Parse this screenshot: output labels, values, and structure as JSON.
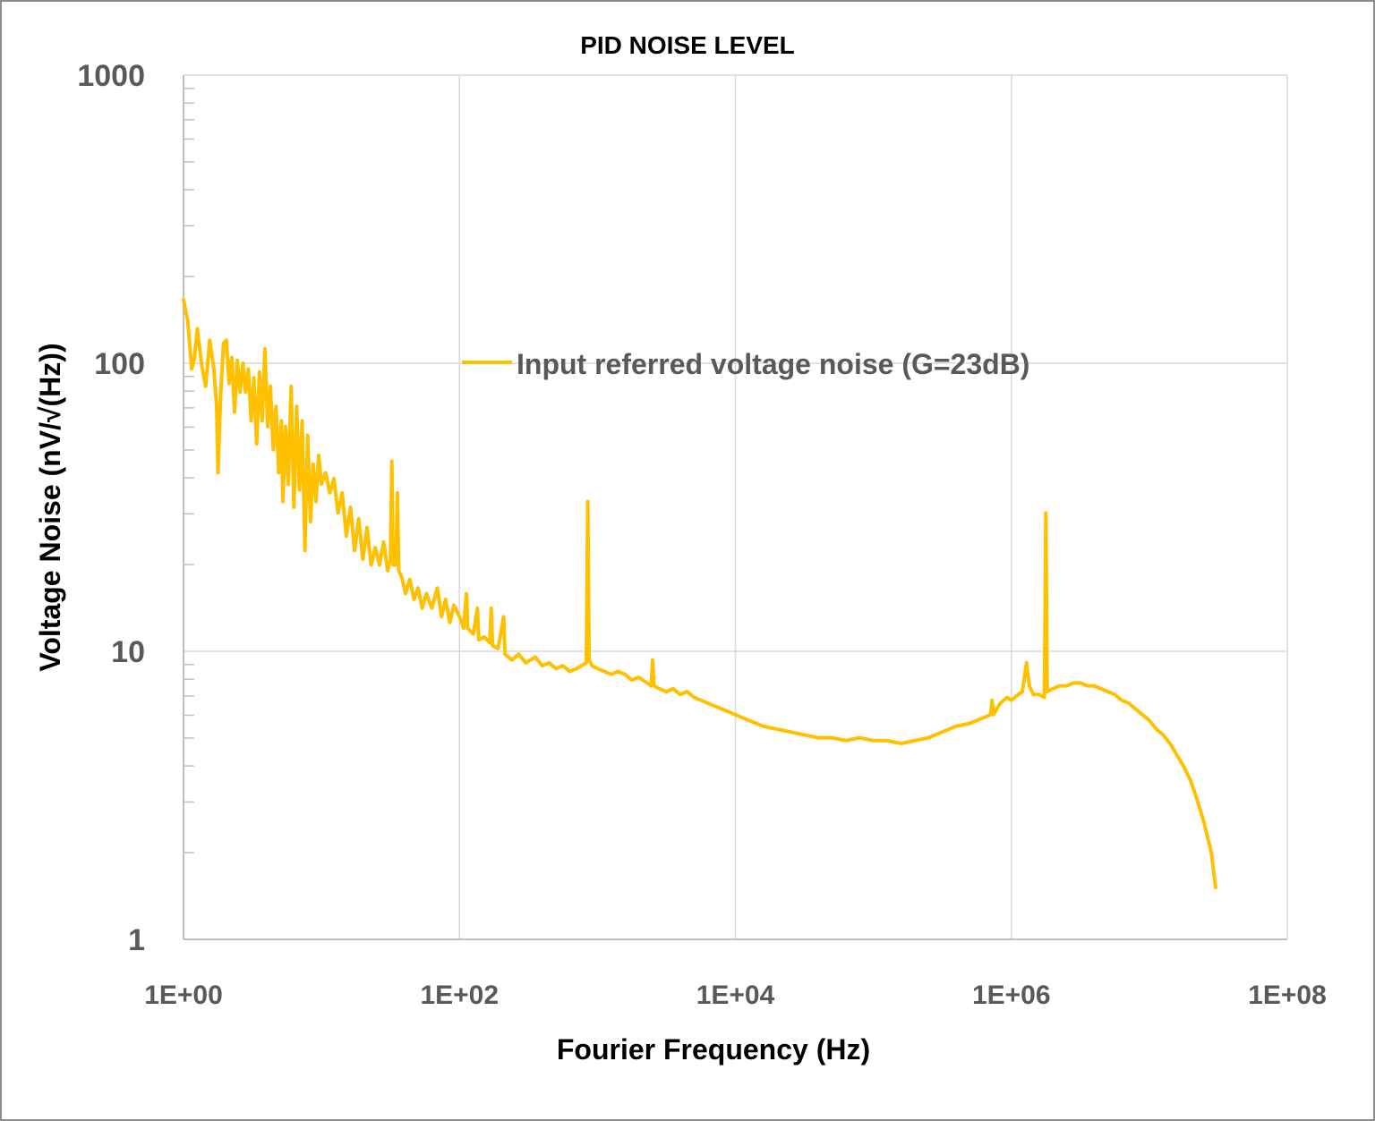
{
  "chart_data": {
    "type": "line",
    "title": "PID NOISE LEVEL",
    "xlabel": "Fourier Frequency (Hz)",
    "ylabel": "Voltage Noise (nV/√(Hz))",
    "xscale": "log",
    "yscale": "log",
    "xlim": [
      1,
      100000000
    ],
    "ylim": [
      1,
      1000
    ],
    "x_tick_labels": [
      "1E+00",
      "1E+02",
      "1E+04",
      "1E+06",
      "1E+08"
    ],
    "y_tick_labels": [
      "1",
      "10",
      "100",
      "1000"
    ],
    "grid": true,
    "legend_position": "inside-top-center",
    "series": [
      {
        "name": "Input referred voltage noise (G=23dB)",
        "color": "#FFC000",
        "points_log10": [
          [
            0.0,
            2.22
          ],
          [
            0.03,
            2.15
          ],
          [
            0.06,
            1.98
          ],
          [
            0.08,
            2.02
          ],
          [
            0.1,
            2.12
          ],
          [
            0.13,
            2.0
          ],
          [
            0.16,
            1.92
          ],
          [
            0.19,
            2.08
          ],
          [
            0.22,
            1.98
          ],
          [
            0.24,
            1.85
          ],
          [
            0.25,
            1.62
          ],
          [
            0.27,
            1.9
          ],
          [
            0.29,
            2.07
          ],
          [
            0.31,
            2.08
          ],
          [
            0.33,
            1.93
          ],
          [
            0.35,
            2.02
          ],
          [
            0.37,
            1.83
          ],
          [
            0.39,
            2.01
          ],
          [
            0.41,
            1.9
          ],
          [
            0.43,
            2.0
          ],
          [
            0.45,
            1.9
          ],
          [
            0.47,
            1.98
          ],
          [
            0.49,
            1.8
          ],
          [
            0.51,
            1.95
          ],
          [
            0.53,
            1.72
          ],
          [
            0.55,
            1.97
          ],
          [
            0.57,
            1.8
          ],
          [
            0.59,
            2.05
          ],
          [
            0.61,
            1.78
          ],
          [
            0.63,
            1.92
          ],
          [
            0.65,
            1.7
          ],
          [
            0.67,
            1.85
          ],
          [
            0.69,
            1.62
          ],
          [
            0.71,
            1.8
          ],
          [
            0.72,
            1.52
          ],
          [
            0.74,
            1.78
          ],
          [
            0.76,
            1.58
          ],
          [
            0.78,
            1.92
          ],
          [
            0.8,
            1.5
          ],
          [
            0.82,
            1.85
          ],
          [
            0.84,
            1.56
          ],
          [
            0.86,
            1.8
          ],
          [
            0.88,
            1.35
          ],
          [
            0.9,
            1.75
          ],
          [
            0.92,
            1.45
          ],
          [
            0.94,
            1.65
          ],
          [
            0.96,
            1.52
          ],
          [
            0.98,
            1.68
          ],
          [
            1.0,
            1.58
          ],
          [
            1.03,
            1.62
          ],
          [
            1.06,
            1.55
          ],
          [
            1.09,
            1.6
          ],
          [
            1.12,
            1.48
          ],
          [
            1.15,
            1.55
          ],
          [
            1.18,
            1.4
          ],
          [
            1.21,
            1.5
          ],
          [
            1.24,
            1.35
          ],
          [
            1.27,
            1.46
          ],
          [
            1.3,
            1.32
          ],
          [
            1.33,
            1.43
          ],
          [
            1.36,
            1.3
          ],
          [
            1.39,
            1.36
          ],
          [
            1.42,
            1.3
          ],
          [
            1.45,
            1.38
          ],
          [
            1.48,
            1.28
          ],
          [
            1.5,
            1.32
          ],
          [
            1.51,
            1.66
          ],
          [
            1.52,
            1.3
          ],
          [
            1.54,
            1.3
          ],
          [
            1.55,
            1.55
          ],
          [
            1.56,
            1.28
          ],
          [
            1.58,
            1.26
          ],
          [
            1.61,
            1.2
          ],
          [
            1.64,
            1.25
          ],
          [
            1.67,
            1.18
          ],
          [
            1.7,
            1.22
          ],
          [
            1.73,
            1.15
          ],
          [
            1.76,
            1.2
          ],
          [
            1.8,
            1.15
          ],
          [
            1.84,
            1.22
          ],
          [
            1.87,
            1.12
          ],
          [
            1.9,
            1.18
          ],
          [
            1.93,
            1.1
          ],
          [
            1.96,
            1.16
          ],
          [
            2.0,
            1.12
          ],
          [
            2.03,
            1.08
          ],
          [
            2.05,
            1.2
          ],
          [
            2.06,
            1.08
          ],
          [
            2.1,
            1.06
          ],
          [
            2.13,
            1.15
          ],
          [
            2.14,
            1.04
          ],
          [
            2.18,
            1.05
          ],
          [
            2.22,
            1.03
          ],
          [
            2.23,
            1.15
          ],
          [
            2.24,
            1.02
          ],
          [
            2.28,
            1.01
          ],
          [
            2.32,
            1.12
          ],
          [
            2.33,
            0.99
          ],
          [
            2.38,
            0.97
          ],
          [
            2.43,
            0.99
          ],
          [
            2.48,
            0.96
          ],
          [
            2.55,
            0.98
          ],
          [
            2.6,
            0.95
          ],
          [
            2.65,
            0.96
          ],
          [
            2.7,
            0.94
          ],
          [
            2.75,
            0.95
          ],
          [
            2.8,
            0.93
          ],
          [
            2.85,
            0.94
          ],
          [
            2.92,
            0.96
          ],
          [
            2.93,
            1.52
          ],
          [
            2.94,
            0.97
          ],
          [
            2.96,
            0.95
          ],
          [
            3.0,
            0.94
          ],
          [
            3.05,
            0.93
          ],
          [
            3.1,
            0.92
          ],
          [
            3.15,
            0.93
          ],
          [
            3.2,
            0.92
          ],
          [
            3.25,
            0.9
          ],
          [
            3.3,
            0.91
          ],
          [
            3.36,
            0.89
          ],
          [
            3.39,
            0.88
          ],
          [
            3.4,
            0.97
          ],
          [
            3.41,
            0.88
          ],
          [
            3.45,
            0.87
          ],
          [
            3.5,
            0.86
          ],
          [
            3.55,
            0.87
          ],
          [
            3.6,
            0.85
          ],
          [
            3.65,
            0.86
          ],
          [
            3.7,
            0.84
          ],
          [
            3.75,
            0.83
          ],
          [
            3.8,
            0.82
          ],
          [
            3.85,
            0.81
          ],
          [
            3.9,
            0.8
          ],
          [
            3.95,
            0.79
          ],
          [
            4.0,
            0.78
          ],
          [
            4.05,
            0.77
          ],
          [
            4.1,
            0.76
          ],
          [
            4.15,
            0.75
          ],
          [
            4.2,
            0.74
          ],
          [
            4.3,
            0.73
          ],
          [
            4.4,
            0.72
          ],
          [
            4.5,
            0.71
          ],
          [
            4.6,
            0.7
          ],
          [
            4.7,
            0.7
          ],
          [
            4.8,
            0.69
          ],
          [
            4.9,
            0.7
          ],
          [
            5.0,
            0.69
          ],
          [
            5.1,
            0.69
          ],
          [
            5.2,
            0.68
          ],
          [
            5.3,
            0.69
          ],
          [
            5.4,
            0.7
          ],
          [
            5.5,
            0.72
          ],
          [
            5.6,
            0.74
          ],
          [
            5.7,
            0.75
          ],
          [
            5.8,
            0.77
          ],
          [
            5.85,
            0.78
          ],
          [
            5.86,
            0.83
          ],
          [
            5.87,
            0.78
          ],
          [
            5.92,
            0.82
          ],
          [
            5.97,
            0.84
          ],
          [
            6.0,
            0.83
          ],
          [
            6.05,
            0.85
          ],
          [
            6.08,
            0.86
          ],
          [
            6.11,
            0.96
          ],
          [
            6.13,
            0.88
          ],
          [
            6.16,
            0.85
          ],
          [
            6.2,
            0.85
          ],
          [
            6.24,
            0.84
          ],
          [
            6.25,
            1.48
          ],
          [
            6.26,
            0.86
          ],
          [
            6.3,
            0.87
          ],
          [
            6.35,
            0.88
          ],
          [
            6.4,
            0.88
          ],
          [
            6.45,
            0.89
          ],
          [
            6.5,
            0.89
          ],
          [
            6.55,
            0.88
          ],
          [
            6.6,
            0.88
          ],
          [
            6.65,
            0.87
          ],
          [
            6.7,
            0.86
          ],
          [
            6.75,
            0.85
          ],
          [
            6.8,
            0.83
          ],
          [
            6.85,
            0.82
          ],
          [
            6.9,
            0.8
          ],
          [
            6.95,
            0.78
          ],
          [
            7.0,
            0.76
          ],
          [
            7.05,
            0.73
          ],
          [
            7.1,
            0.71
          ],
          [
            7.15,
            0.68
          ],
          [
            7.2,
            0.64
          ],
          [
            7.25,
            0.6
          ],
          [
            7.3,
            0.55
          ],
          [
            7.35,
            0.48
          ],
          [
            7.4,
            0.4
          ],
          [
            7.45,
            0.3
          ],
          [
            7.48,
            0.18
          ]
        ]
      }
    ]
  },
  "legend": {
    "label": "Input referred voltage noise (G=23dB)"
  }
}
